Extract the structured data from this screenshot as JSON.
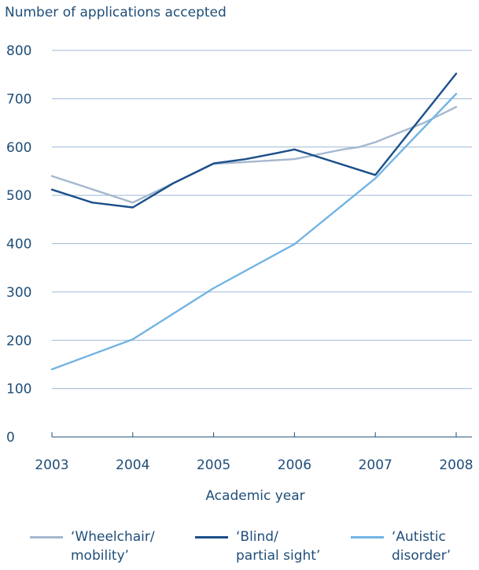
{
  "chart_data": {
    "type": "line",
    "ylabel": "Number of applications accepted",
    "xlabel": "Academic year",
    "categories": [
      "2003",
      "2004",
      "2005",
      "2006",
      "2007",
      "2008"
    ],
    "ylim": [
      0,
      800
    ],
    "yticks": [
      "0",
      "100",
      "200",
      "300",
      "400",
      "500",
      "600",
      "700",
      "800"
    ],
    "grid": true,
    "legend_position": "bottom",
    "series": [
      {
        "name": "‘Wheelchair/\nmobility’",
        "color": "#a5b8cf",
        "points": [
          [
            2003,
            540
          ],
          [
            2004,
            485
          ],
          [
            2005,
            565
          ],
          [
            2005.5,
            570
          ],
          [
            2006,
            575
          ],
          [
            2006.3,
            585
          ],
          [
            2006.6,
            595
          ],
          [
            2006.8,
            600
          ],
          [
            2007,
            610
          ],
          [
            2007.3,
            630
          ],
          [
            2007.6,
            650
          ],
          [
            2008,
            683
          ]
        ]
      },
      {
        "name": "‘Blind/\npartial sight’",
        "color": "#1b4f8a",
        "points": [
          [
            2003,
            512
          ],
          [
            2003.5,
            485
          ],
          [
            2004,
            475
          ],
          [
            2004.5,
            525
          ],
          [
            2005,
            566
          ],
          [
            2005.4,
            575
          ],
          [
            2005.8,
            588
          ],
          [
            2006,
            595
          ],
          [
            2007,
            542
          ],
          [
            2008,
            752
          ]
        ]
      },
      {
        "name": "‘Autistic\ndisorder’",
        "color": "#72b4e3",
        "points": [
          [
            2003,
            140
          ],
          [
            2004,
            202
          ],
          [
            2005,
            308
          ],
          [
            2006,
            399
          ],
          [
            2007,
            535
          ],
          [
            2008,
            710
          ]
        ]
      }
    ]
  }
}
